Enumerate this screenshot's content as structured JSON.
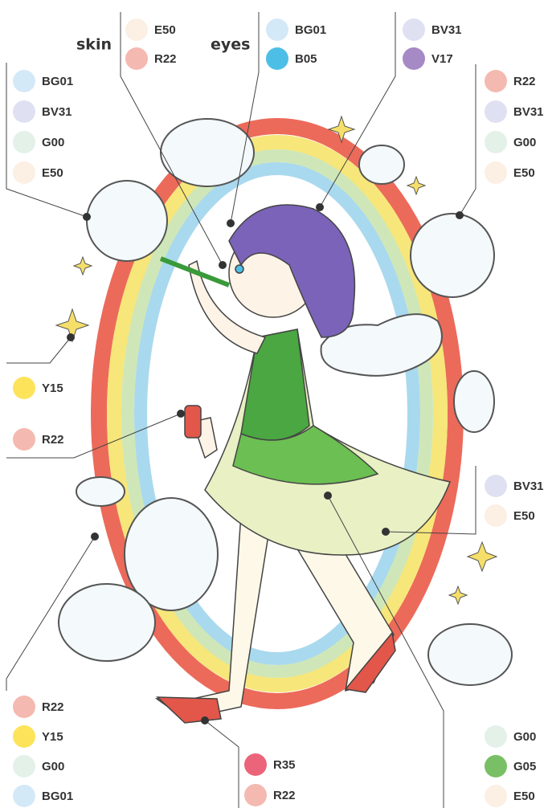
{
  "callouts": [
    {
      "swatches": [
        {
          "code": "BG01",
          "color": "#d4e9f7"
        },
        {
          "code": "BV31",
          "color": "#dfe1f2"
        },
        {
          "code": "G00",
          "color": "#e3f1e8"
        },
        {
          "code": "E50",
          "color": "#fcefe3"
        }
      ]
    },
    {
      "label": "skin",
      "swatches": [
        {
          "code": "E50",
          "color": "#fcefe3"
        },
        {
          "code": "R22",
          "color": "#f4b9b0"
        }
      ]
    },
    {
      "label": "eyes",
      "swatches": [
        {
          "code": "BG01",
          "color": "#d4e9f7"
        },
        {
          "code": "B05",
          "color": "#4dbfe6"
        }
      ]
    },
    {
      "swatches": [
        {
          "code": "BV31",
          "color": "#dfe1f2"
        },
        {
          "code": "V17",
          "color": "#a58ac6"
        }
      ]
    },
    {
      "swatches": [
        {
          "code": "R22",
          "color": "#f4b9b0"
        },
        {
          "code": "BV31",
          "color": "#dfe1f2"
        },
        {
          "code": "G00",
          "color": "#e3f1e8"
        },
        {
          "code": "E50",
          "color": "#fcefe3"
        }
      ]
    },
    {
      "swatches": [
        {
          "code": "Y15",
          "color": "#fde35a"
        }
      ]
    },
    {
      "swatches": [
        {
          "code": "R22",
          "color": "#f4b9b0"
        }
      ]
    },
    {
      "swatches": [
        {
          "code": "BV31",
          "color": "#dfe1f2"
        },
        {
          "code": "E50",
          "color": "#fcefe3"
        }
      ]
    },
    {
      "swatches": [
        {
          "code": "R22",
          "color": "#f4b9b0"
        },
        {
          "code": "Y15",
          "color": "#fde35a"
        },
        {
          "code": "G00",
          "color": "#e3f1e8"
        },
        {
          "code": "BG01",
          "color": "#d4e9f7"
        }
      ]
    },
    {
      "swatches": [
        {
          "code": "R35",
          "color": "#ec6479"
        },
        {
          "code": "R22",
          "color": "#f4b9b0"
        }
      ]
    },
    {
      "swatches": [
        {
          "code": "G00",
          "color": "#e3f1e8"
        },
        {
          "code": "G05",
          "color": "#78bf65"
        },
        {
          "code": "E50",
          "color": "#fcefe3"
        }
      ]
    }
  ]
}
